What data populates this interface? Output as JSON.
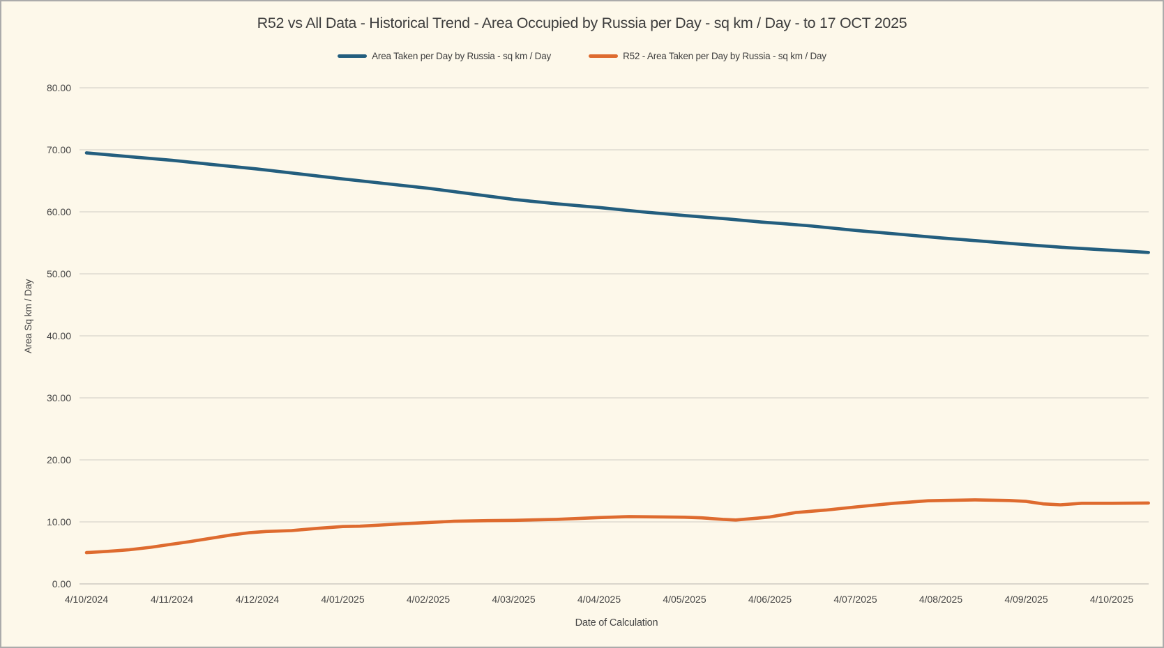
{
  "chart_data": {
    "type": "line",
    "title": "R52 vs All Data - Historical Trend - Area Occupied by Russia per Day - sq km / Day - to 17 OCT 2025",
    "xlabel": "Date of Calculation",
    "ylabel": "Area Sq km / Day",
    "ylim": [
      0,
      80
    ],
    "ytick_step": 10,
    "ytick_decimals": 2,
    "grid": true,
    "legend_position": "top-center",
    "x_tick_labels": [
      "4/10/2024",
      "4/11/2024",
      "4/12/2024",
      "4/01/2025",
      "4/02/2025",
      "4/03/2025",
      "4/04/2025",
      "4/05/2025",
      "4/06/2025",
      "4/07/2025",
      "4/08/2025",
      "4/09/2025",
      "4/10/2025"
    ],
    "x_unit": "months after first tick (4/10/2024); data extends past last tick to 17 OCT 2025 at x=12.43",
    "series": [
      {
        "name": "Area Taken per Day by Russia - sq km / Day",
        "color": "#235E7E",
        "points": [
          [
            0,
            69.5
          ],
          [
            0.5,
            68.9
          ],
          [
            1,
            68.3
          ],
          [
            1.5,
            67.6
          ],
          [
            2,
            66.9
          ],
          [
            2.5,
            66.1
          ],
          [
            3,
            65.3
          ],
          [
            3.5,
            64.55
          ],
          [
            4,
            63.8
          ],
          [
            4.5,
            62.9
          ],
          [
            5,
            62.0
          ],
          [
            5.5,
            61.3
          ],
          [
            6,
            60.7
          ],
          [
            6.5,
            60.0
          ],
          [
            7,
            59.4
          ],
          [
            7.5,
            58.85
          ],
          [
            7.9,
            58.35
          ],
          [
            8.15,
            58.1
          ],
          [
            8.5,
            57.7
          ],
          [
            9,
            57.0
          ],
          [
            9.5,
            56.4
          ],
          [
            10,
            55.8
          ],
          [
            10.5,
            55.25
          ],
          [
            11,
            54.7
          ],
          [
            11.5,
            54.2
          ],
          [
            12,
            53.8
          ],
          [
            12.43,
            53.45
          ]
        ]
      },
      {
        "name": "R52 - Area Taken per Day by Russia - sq km / Day",
        "color": "#DE6B2F",
        "points": [
          [
            0,
            5.05
          ],
          [
            0.25,
            5.25
          ],
          [
            0.5,
            5.5
          ],
          [
            0.75,
            5.9
          ],
          [
            1,
            6.4
          ],
          [
            1.2,
            6.8
          ],
          [
            1.45,
            7.35
          ],
          [
            1.7,
            7.9
          ],
          [
            1.9,
            8.25
          ],
          [
            2.1,
            8.45
          ],
          [
            2.4,
            8.6
          ],
          [
            2.7,
            8.95
          ],
          [
            3,
            9.25
          ],
          [
            3.2,
            9.3
          ],
          [
            3.45,
            9.5
          ],
          [
            3.7,
            9.7
          ],
          [
            4,
            9.9
          ],
          [
            4.3,
            10.1
          ],
          [
            4.7,
            10.2
          ],
          [
            5,
            10.25
          ],
          [
            5.5,
            10.4
          ],
          [
            6,
            10.7
          ],
          [
            6.35,
            10.85
          ],
          [
            6.75,
            10.8
          ],
          [
            7,
            10.75
          ],
          [
            7.2,
            10.65
          ],
          [
            7.45,
            10.4
          ],
          [
            7.6,
            10.3
          ],
          [
            7.85,
            10.6
          ],
          [
            8,
            10.8
          ],
          [
            8.15,
            11.15
          ],
          [
            8.3,
            11.5
          ],
          [
            8.65,
            11.9
          ],
          [
            9,
            12.4
          ],
          [
            9.45,
            13.0
          ],
          [
            9.85,
            13.4
          ],
          [
            10,
            13.45
          ],
          [
            10.4,
            13.55
          ],
          [
            10.8,
            13.45
          ],
          [
            11,
            13.3
          ],
          [
            11.2,
            12.9
          ],
          [
            11.4,
            12.75
          ],
          [
            11.65,
            13.0
          ],
          [
            12,
            13.0
          ],
          [
            12.43,
            13.05
          ]
        ]
      }
    ]
  },
  "colors": {
    "background": "#FDF8EA",
    "border": "#ABABAB",
    "gridline": "#D8D4CC",
    "zero_line": "#C6C2BA",
    "tick_text": "#454545",
    "title_text": "#3E3E3E"
  }
}
